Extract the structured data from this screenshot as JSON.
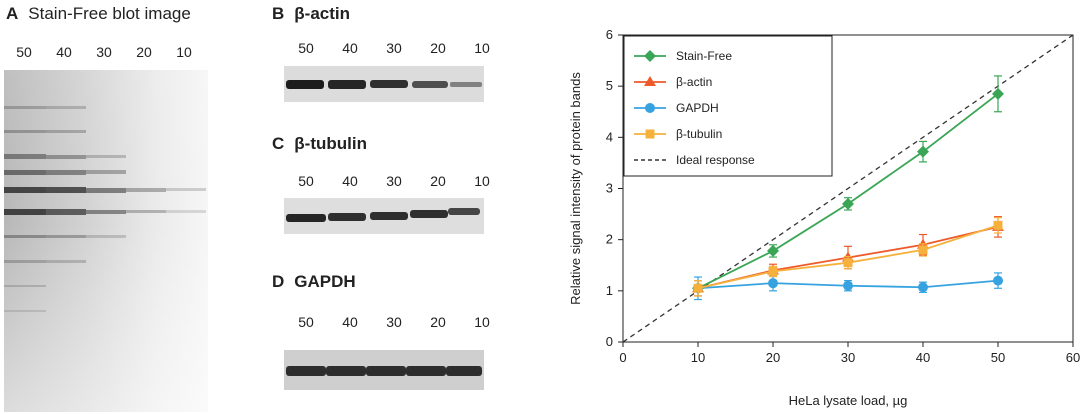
{
  "panel_a": {
    "letter": "A",
    "title": "Stain-Free blot image",
    "lanes": [
      "50",
      "40",
      "30",
      "20",
      "10"
    ]
  },
  "panel_b": {
    "letter": "B",
    "title": "β-actin",
    "lanes": [
      "50",
      "40",
      "30",
      "20",
      "10"
    ]
  },
  "panel_c": {
    "letter": "C",
    "title": "β-tubulin",
    "lanes": [
      "50",
      "40",
      "30",
      "20",
      "10"
    ]
  },
  "panel_d": {
    "letter": "D",
    "title": "GAPDH",
    "lanes": [
      "50",
      "40",
      "30",
      "20",
      "10"
    ]
  },
  "chart_data": {
    "type": "line",
    "title": "",
    "xlabel": "HeLa lysate load, µg",
    "ylabel": "Relative signal intensity of protein bands",
    "xlim": [
      0,
      60
    ],
    "ylim": [
      0,
      6
    ],
    "xticks": [
      0,
      10,
      20,
      30,
      40,
      50,
      60
    ],
    "yticks": [
      0,
      1,
      2,
      3,
      4,
      5,
      6
    ],
    "grid": false,
    "legend_position": "top-left",
    "x": [
      10,
      20,
      30,
      40,
      50
    ],
    "series": [
      {
        "name": "Stain-Free",
        "color": "#3aa655",
        "marker": "diamond",
        "values": [
          1.05,
          1.78,
          2.7,
          3.72,
          4.85
        ],
        "errors": [
          0.15,
          0.12,
          0.12,
          0.2,
          0.35
        ]
      },
      {
        "name": "β-actin",
        "color": "#ef5a2a",
        "marker": "triangle",
        "values": [
          1.05,
          1.4,
          1.65,
          1.9,
          2.25
        ],
        "errors": [
          0.15,
          0.12,
          0.22,
          0.2,
          0.2
        ]
      },
      {
        "name": "GAPDH",
        "color": "#36a3e0",
        "marker": "circle",
        "values": [
          1.05,
          1.15,
          1.1,
          1.07,
          1.2
        ],
        "errors": [
          0.22,
          0.15,
          0.1,
          0.1,
          0.15
        ]
      },
      {
        "name": "β-tubulin",
        "color": "#f6b13c",
        "marker": "square",
        "values": [
          1.05,
          1.38,
          1.55,
          1.8,
          2.28
        ],
        "errors": [
          0.15,
          0.1,
          0.12,
          0.12,
          0.15
        ]
      }
    ],
    "reference_line": {
      "name": "Ideal response",
      "color": "#333333",
      "style": "dashed",
      "from": [
        0,
        0
      ],
      "to": [
        60,
        6
      ]
    }
  }
}
